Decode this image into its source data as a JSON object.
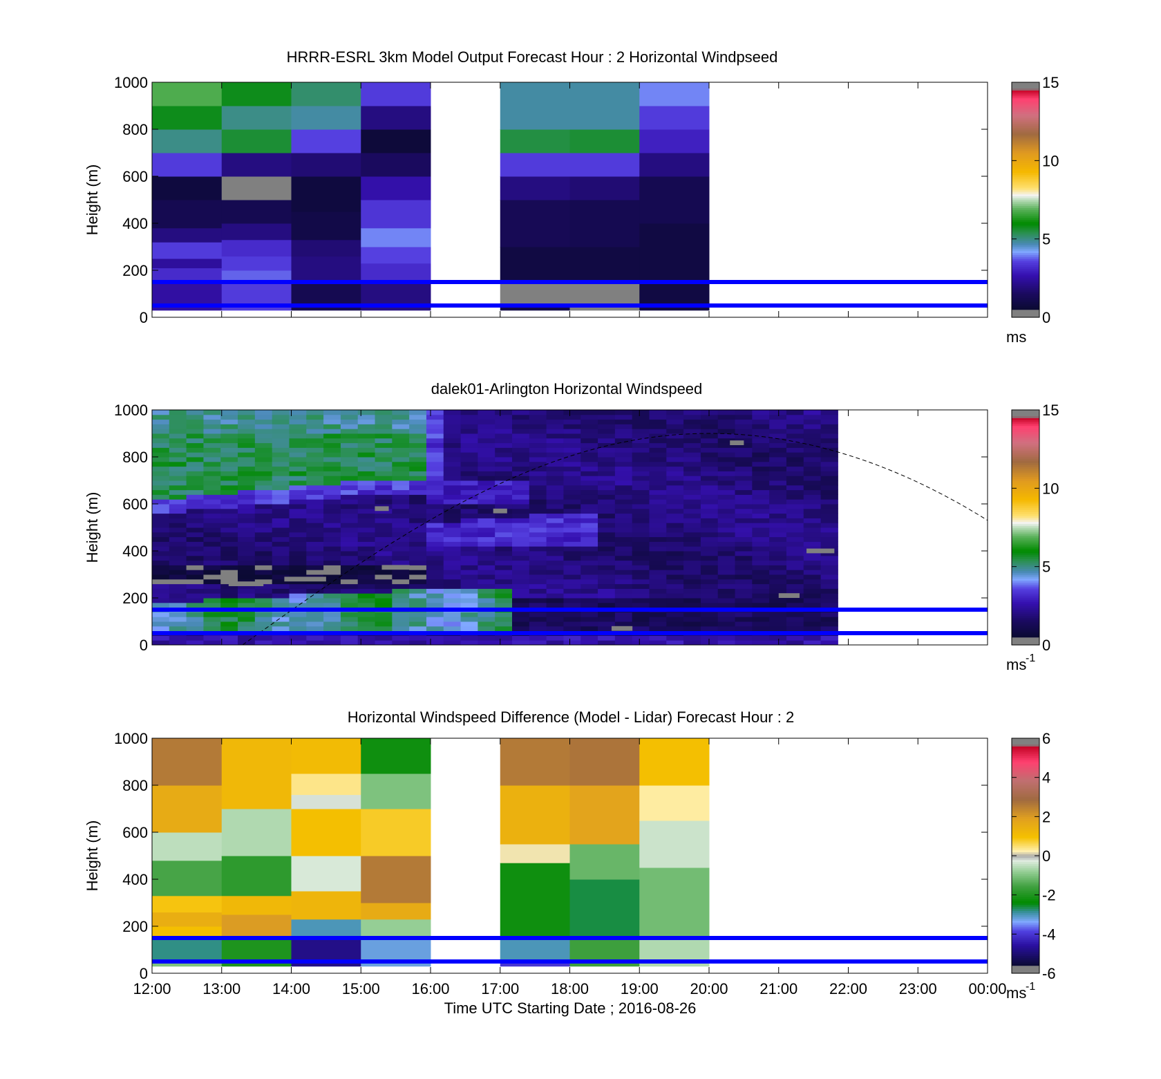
{
  "figure": {
    "xlabel": "Time UTC  Starting Date ; 2016-08-26",
    "x_tick_labels": [
      "12:00",
      "13:00",
      "14:00",
      "15:00",
      "16:00",
      "17:00",
      "18:00",
      "19:00",
      "20:00",
      "21:00",
      "22:00",
      "23:00",
      "00:00"
    ],
    "xlim_hours": [
      12,
      24
    ]
  },
  "chart_data": [
    {
      "type": "heatmap",
      "title": "HRRR-ESRL 3km Model Output   Forecast Hour : 2 Horizontal Windpseed",
      "ylabel": "Height (m)",
      "ylim": [
        0,
        1000
      ],
      "y_ticks": [
        0,
        200,
        400,
        600,
        800,
        1000
      ],
      "colorbar": {
        "min": 0,
        "max": 15,
        "ticks": [
          0,
          5,
          10,
          15
        ],
        "unit": "ms",
        "unit_sup": ""
      },
      "x_hours": [
        12,
        13,
        14,
        15,
        16,
        17,
        18,
        19
      ],
      "columns": [
        [
          [
            30,
            150,
            2.5
          ],
          [
            150,
            210,
            3.2
          ],
          [
            210,
            250,
            2.4
          ],
          [
            250,
            320,
            3.5
          ],
          [
            320,
            380,
            2.0
          ],
          [
            380,
            500,
            1.2
          ],
          [
            500,
            600,
            0.8
          ],
          [
            600,
            700,
            3.5
          ],
          [
            700,
            800,
            5.0
          ],
          [
            800,
            900,
            5.8
          ],
          [
            900,
            1000,
            6.8
          ]
        ],
        [
          [
            30,
            150,
            3.5
          ],
          [
            150,
            200,
            3.8
          ],
          [
            200,
            260,
            3.5
          ],
          [
            260,
            330,
            3.2
          ],
          [
            330,
            400,
            2.0
          ],
          [
            400,
            500,
            1.2
          ],
          [
            500,
            600,
            0.2
          ],
          [
            600,
            700,
            2.0
          ],
          [
            700,
            800,
            5.6
          ],
          [
            800,
            900,
            5.0
          ],
          [
            900,
            1000,
            5.8
          ]
        ],
        [
          [
            30,
            150,
            1.2
          ],
          [
            150,
            260,
            2.0
          ],
          [
            260,
            330,
            1.8
          ],
          [
            330,
            450,
            1.0
          ],
          [
            450,
            600,
            0.8
          ],
          [
            600,
            700,
            1.8
          ],
          [
            700,
            800,
            3.6
          ],
          [
            800,
            900,
            4.8
          ],
          [
            900,
            1000,
            5.2
          ]
        ],
        [
          [
            30,
            150,
            2.0
          ],
          [
            150,
            230,
            3.2
          ],
          [
            230,
            300,
            3.6
          ],
          [
            300,
            380,
            4.0
          ],
          [
            380,
            500,
            3.4
          ],
          [
            500,
            600,
            2.6
          ],
          [
            600,
            700,
            1.5
          ],
          [
            700,
            800,
            0.7
          ],
          [
            800,
            900,
            2.0
          ],
          [
            900,
            1000,
            3.5
          ]
        ],
        null,
        [
          [
            30,
            60,
            1.0
          ],
          [
            60,
            150,
            0.2
          ],
          [
            150,
            300,
            0.9
          ],
          [
            300,
            500,
            1.3
          ],
          [
            500,
            600,
            2.0
          ],
          [
            600,
            700,
            3.5
          ],
          [
            700,
            800,
            5.5
          ],
          [
            800,
            1000,
            4.8
          ]
        ],
        [
          [
            30,
            60,
            0.2
          ],
          [
            60,
            150,
            0.2
          ],
          [
            150,
            300,
            0.9
          ],
          [
            300,
            500,
            1.2
          ],
          [
            500,
            600,
            1.8
          ],
          [
            600,
            700,
            3.5
          ],
          [
            700,
            800,
            5.6
          ],
          [
            800,
            1000,
            4.8
          ]
        ],
        [
          [
            30,
            150,
            0.9
          ],
          [
            150,
            400,
            0.9
          ],
          [
            400,
            600,
            1.2
          ],
          [
            600,
            700,
            2.0
          ],
          [
            700,
            800,
            3.0
          ],
          [
            800,
            900,
            3.5
          ],
          [
            900,
            1000,
            4.0
          ]
        ]
      ],
      "lines": [
        {
          "y": 150,
          "color": "#0000ff"
        },
        {
          "y": 50,
          "color": "#0000ff"
        }
      ]
    },
    {
      "type": "heatmap",
      "title": "dalek01-Arlington  Horizontal Windspeed",
      "ylabel": "Height (m)",
      "ylim": [
        0,
        1000
      ],
      "y_ticks": [
        0,
        200,
        400,
        600,
        800,
        1000
      ],
      "colorbar": {
        "min": 0,
        "max": 15,
        "ticks": [
          0,
          5,
          10,
          15
        ],
        "unit": "ms",
        "unit_sup": "-1"
      },
      "x_start_hour": 12,
      "x_end_hour": 21.85,
      "column_count": 40,
      "row_count": 50,
      "gray_marks": [
        [
          13.9,
          14.5,
          270
        ],
        [
          13.1,
          13.6,
          250
        ],
        [
          15.3,
          15.7,
          320
        ],
        [
          16.9,
          17.1,
          560
        ],
        [
          15.2,
          15.4,
          570
        ],
        [
          21.4,
          21.8,
          390
        ],
        [
          20.3,
          20.5,
          850
        ],
        [
          21.0,
          21.3,
          200
        ],
        [
          18.6,
          18.9,
          60
        ]
      ],
      "lines": [
        {
          "y": 150,
          "color": "#0000ff"
        },
        {
          "y": 50,
          "color": "#0000ff"
        }
      ],
      "dashed_curve": {
        "start_hour": 13.3,
        "peak_hour": 20.0,
        "peak_height": 900,
        "end_hour": 24,
        "end_height": 530
      }
    },
    {
      "type": "heatmap",
      "title": "Horizontal Windspeed Difference (Model - Lidar) Forecast Hour : 2",
      "ylabel": "Height (m)",
      "ylim": [
        0,
        1000
      ],
      "y_ticks": [
        0,
        200,
        400,
        600,
        800,
        1000
      ],
      "colorbar": {
        "min": -6,
        "max": 6,
        "ticks": [
          -6,
          -4,
          -2,
          0,
          2,
          4,
          6
        ],
        "unit": "ms",
        "unit_sup": "-1"
      },
      "x_hours": [
        12,
        13,
        14,
        15,
        16,
        17,
        18,
        19
      ],
      "columns": [
        [
          [
            30,
            60,
            -1.0
          ],
          [
            60,
            150,
            -2.8
          ],
          [
            150,
            200,
            1.0
          ],
          [
            200,
            260,
            1.5
          ],
          [
            260,
            330,
            0.9
          ],
          [
            330,
            480,
            -1.5
          ],
          [
            480,
            600,
            -0.5
          ],
          [
            600,
            800,
            1.6
          ],
          [
            800,
            1000,
            2.6
          ]
        ],
        [
          [
            30,
            150,
            -2.0
          ],
          [
            150,
            250,
            2.0
          ],
          [
            250,
            330,
            1.2
          ],
          [
            330,
            500,
            -1.8
          ],
          [
            500,
            700,
            -0.6
          ],
          [
            700,
            1000,
            1.2
          ]
        ],
        [
          [
            30,
            150,
            -4.8
          ],
          [
            150,
            230,
            -3.0
          ],
          [
            230,
            350,
            1.3
          ],
          [
            350,
            500,
            -0.3
          ],
          [
            500,
            700,
            1.0
          ],
          [
            700,
            760,
            -0.2
          ],
          [
            760,
            850,
            0.4
          ],
          [
            850,
            1000,
            1.1
          ]
        ],
        [
          [
            30,
            150,
            -3.2
          ],
          [
            150,
            230,
            -0.8
          ],
          [
            230,
            300,
            1.6
          ],
          [
            300,
            500,
            2.6
          ],
          [
            500,
            700,
            0.8
          ],
          [
            700,
            850,
            -1.0
          ],
          [
            850,
            1000,
            -2.2
          ]
        ],
        null,
        [
          [
            30,
            60,
            -4.0
          ],
          [
            60,
            150,
            -3.0
          ],
          [
            150,
            470,
            -2.2
          ],
          [
            470,
            550,
            0.2
          ],
          [
            550,
            800,
            1.4
          ],
          [
            800,
            1000,
            2.6
          ]
        ],
        [
          [
            30,
            150,
            -1.6
          ],
          [
            150,
            400,
            -2.6
          ],
          [
            400,
            550,
            -1.2
          ],
          [
            550,
            800,
            1.8
          ],
          [
            800,
            1000,
            2.7
          ]
        ],
        [
          [
            30,
            150,
            -0.6
          ],
          [
            150,
            450,
            -1.1
          ],
          [
            450,
            650,
            -0.4
          ],
          [
            650,
            800,
            0.3
          ],
          [
            800,
            1000,
            1.0
          ]
        ]
      ],
      "lines": [
        {
          "y": 150,
          "color": "#0000ff"
        },
        {
          "y": 50,
          "color": "#0000ff"
        }
      ]
    }
  ]
}
